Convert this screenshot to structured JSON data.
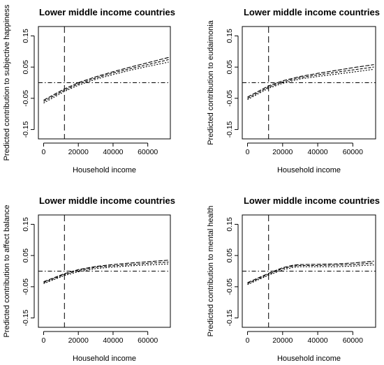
{
  "chart_data": [
    {
      "type": "line",
      "title": "Lower middle income countries",
      "xlabel": "Household income",
      "ylabel": "Predicted contribution to subjective happiness",
      "xlim": [
        -3000,
        73000
      ],
      "ylim": [
        -0.18,
        0.18
      ],
      "xticks": [
        "0",
        "20000",
        "40000",
        "60000"
      ],
      "yticks": [
        "-0.15",
        "-0.05",
        "0.05",
        "0.15"
      ],
      "reference_x": 12000,
      "reference_y": 0,
      "series": [
        {
          "x": [
            0,
            12000,
            20000,
            30000,
            40000,
            50000,
            60000,
            72000
          ],
          "values": [
            -0.065,
            -0.028,
            -0.008,
            0.011,
            0.026,
            0.04,
            0.052,
            0.066
          ]
        },
        {
          "x": [
            0,
            12000,
            20000,
            30000,
            40000,
            50000,
            60000,
            72000
          ],
          "values": [
            -0.06,
            -0.024,
            -0.004,
            0.015,
            0.031,
            0.045,
            0.058,
            0.074
          ]
        },
        {
          "x": [
            0,
            12000,
            20000,
            30000,
            40000,
            50000,
            60000,
            72000
          ],
          "values": [
            -0.056,
            -0.02,
            0.0,
            0.019,
            0.035,
            0.05,
            0.064,
            0.081
          ]
        }
      ]
    },
    {
      "type": "line",
      "title": "Lower middle income countries",
      "xlabel": "Household income",
      "ylabel": "Predicted contribution to eudaimonia",
      "xlim": [
        -3000,
        73000
      ],
      "ylim": [
        -0.18,
        0.18
      ],
      "xticks": [
        "0",
        "20000",
        "40000",
        "60000"
      ],
      "yticks": [
        "-0.15",
        "-0.05",
        "0.05",
        "0.15"
      ],
      "reference_x": 12000,
      "reference_y": 0,
      "series": [
        {
          "x": [
            0,
            12000,
            20000,
            30000,
            40000,
            50000,
            60000,
            72000
          ],
          "values": [
            -0.054,
            -0.018,
            -0.002,
            0.012,
            0.02,
            0.027,
            0.034,
            0.043
          ]
        },
        {
          "x": [
            0,
            12000,
            20000,
            30000,
            40000,
            50000,
            60000,
            72000
          ],
          "values": [
            -0.05,
            -0.014,
            0.002,
            0.016,
            0.025,
            0.033,
            0.041,
            0.05
          ]
        },
        {
          "x": [
            0,
            12000,
            20000,
            30000,
            40000,
            50000,
            60000,
            72000
          ],
          "values": [
            -0.046,
            -0.01,
            0.006,
            0.02,
            0.03,
            0.039,
            0.048,
            0.058
          ]
        }
      ]
    },
    {
      "type": "line",
      "title": "Lower middle income countries",
      "xlabel": "Household income",
      "ylabel": "Predicted contribution to affect balance",
      "xlim": [
        -3000,
        73000
      ],
      "ylim": [
        -0.18,
        0.18
      ],
      "xticks": [
        "0",
        "20000",
        "40000",
        "60000"
      ],
      "yticks": [
        "-0.15",
        "-0.05",
        "0.05",
        "0.15"
      ],
      "reference_x": 12000,
      "reference_y": 0,
      "series": [
        {
          "x": [
            0,
            12000,
            20000,
            30000,
            40000,
            50000,
            60000,
            72000
          ],
          "values": [
            -0.04,
            -0.014,
            -0.002,
            0.008,
            0.013,
            0.017,
            0.02,
            0.023
          ]
        },
        {
          "x": [
            0,
            12000,
            20000,
            30000,
            40000,
            50000,
            60000,
            72000
          ],
          "values": [
            -0.037,
            -0.011,
            0.002,
            0.012,
            0.017,
            0.021,
            0.025,
            0.029
          ]
        },
        {
          "x": [
            0,
            12000,
            20000,
            30000,
            40000,
            50000,
            60000,
            72000
          ],
          "values": [
            -0.034,
            -0.008,
            0.005,
            0.015,
            0.021,
            0.026,
            0.03,
            0.035
          ]
        }
      ]
    },
    {
      "type": "line",
      "title": "Lower middle income countries",
      "xlabel": "Household income",
      "ylabel": "Predicted contribution to mental health",
      "xlim": [
        -3000,
        73000
      ],
      "ylim": [
        -0.18,
        0.18
      ],
      "xticks": [
        "0",
        "20000",
        "40000",
        "60000"
      ],
      "yticks": [
        "-0.15",
        "-0.05",
        "0.05",
        "0.15"
      ],
      "reference_x": 12000,
      "reference_y": 0,
      "series": [
        {
          "x": [
            0,
            12000,
            20000,
            26000,
            30000,
            40000,
            50000,
            60000,
            72000
          ],
          "values": [
            -0.043,
            -0.013,
            0.004,
            0.012,
            0.014,
            0.014,
            0.014,
            0.016,
            0.02
          ]
        },
        {
          "x": [
            0,
            12000,
            20000,
            26000,
            30000,
            40000,
            50000,
            60000,
            72000
          ],
          "values": [
            -0.04,
            -0.01,
            0.008,
            0.016,
            0.018,
            0.018,
            0.019,
            0.021,
            0.026
          ]
        },
        {
          "x": [
            0,
            12000,
            20000,
            26000,
            30000,
            40000,
            50000,
            60000,
            72000
          ],
          "values": [
            -0.037,
            -0.007,
            0.011,
            0.019,
            0.021,
            0.022,
            0.023,
            0.026,
            0.032
          ]
        }
      ]
    }
  ]
}
